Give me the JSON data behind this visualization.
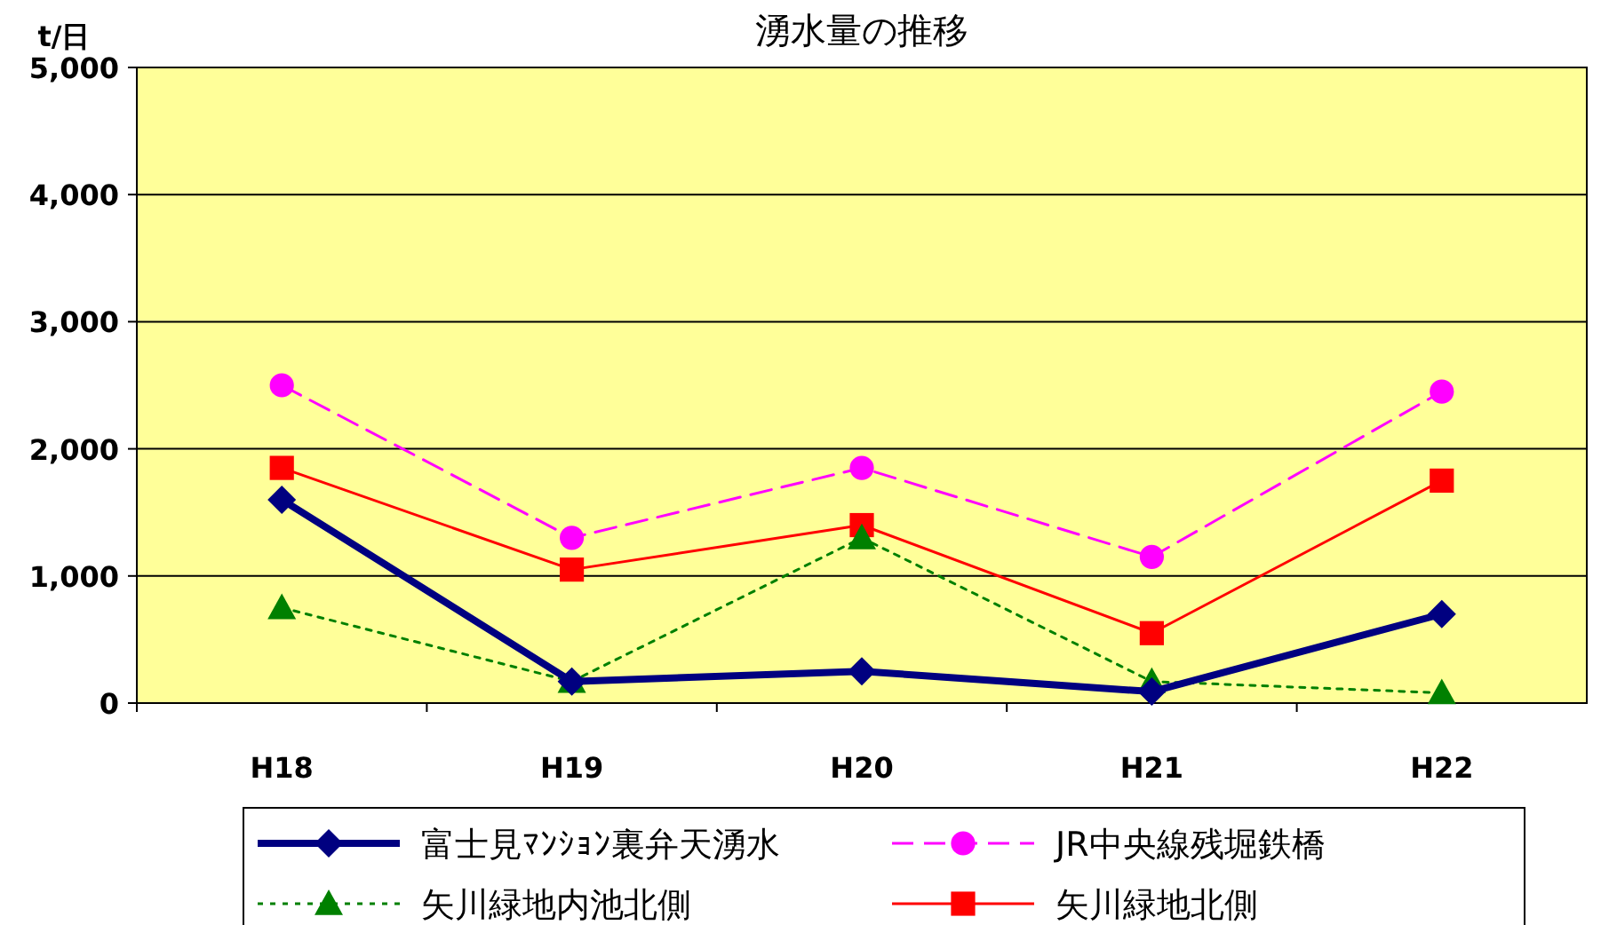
{
  "chart_data": {
    "type": "line",
    "title": "湧水量の推移",
    "ylabel": "t/日",
    "categories": [
      "H18",
      "H19",
      "H20",
      "H21",
      "H22"
    ],
    "series": [
      {
        "name": "富士見ﾏﾝｼｮﾝ裏弁天湧水",
        "color": "#000080",
        "values": [
          1600,
          170,
          250,
          90,
          700
        ],
        "marker": "diamond",
        "line_style": "solid"
      },
      {
        "name": "JR中央線残堀鉄橋",
        "color": "#ff00ff",
        "values": [
          2500,
          1300,
          1850,
          1150,
          2450
        ],
        "marker": "circle",
        "line_style": "dashed"
      },
      {
        "name": "矢川緑地内池北側",
        "color": "#008000",
        "values": [
          750,
          170,
          1300,
          170,
          80
        ],
        "marker": "triangle",
        "line_style": "dotted"
      },
      {
        "name": "矢川緑地北側",
        "color": "#ff0000",
        "values": [
          1850,
          1050,
          1400,
          550,
          1750
        ],
        "marker": "square",
        "line_style": "solid"
      }
    ],
    "ylim": [
      0,
      5000
    ],
    "yticks": [
      0,
      {
        "value": 1000,
        "label": "1,000"
      },
      {
        "value": 2000,
        "label": "2,000"
      },
      {
        "value": 3000,
        "label": "3,000"
      },
      {
        "value": 4000,
        "label": "4,000"
      },
      {
        "value": 5000,
        "label": "5,000"
      }
    ],
    "grid": "y",
    "legend": "bottom"
  }
}
